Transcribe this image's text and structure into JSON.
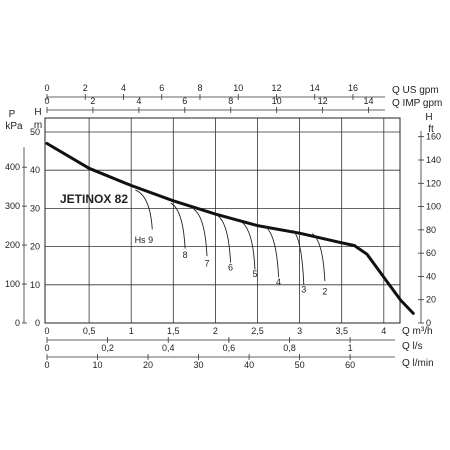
{
  "chart_data": {
    "type": "line",
    "title": "JETINOX 82",
    "x": {
      "unit": "Q m³/h",
      "range": [
        0,
        4.6
      ],
      "ticks": [
        "0",
        "0,5",
        "1",
        "1,5",
        "2",
        "2,5",
        "3",
        "3,5",
        "4"
      ],
      "tick_values": [
        0,
        0.5,
        1,
        1.5,
        2,
        2.5,
        3,
        3.5,
        4
      ]
    },
    "y": {
      "unit_top": "H",
      "unit": "m",
      "range": [
        0,
        50
      ],
      "ticks": [
        "0",
        "10",
        "20",
        "30",
        "40",
        "50"
      ],
      "tick_values": [
        0,
        10,
        20,
        30,
        40,
        50
      ],
      "grid": true
    },
    "pressure_axis": {
      "unit_top": "P",
      "unit": "kPa",
      "ticks": [
        "0",
        "100",
        "200",
        "300",
        "400"
      ],
      "tick_values": [
        0,
        100,
        200,
        300,
        400
      ]
    },
    "feet_axis": {
      "unit_top": "H",
      "unit": "ft",
      "ticks": [
        "0",
        "20",
        "40",
        "60",
        "80",
        "100",
        "120",
        "140",
        "160"
      ],
      "tick_values": [
        0,
        20,
        40,
        60,
        80,
        100,
        120,
        140,
        160
      ]
    },
    "top_axes": [
      {
        "unit": "Q US gpm",
        "ticks": [
          "0",
          "2",
          "4",
          "6",
          "8",
          "10",
          "12",
          "14",
          "16"
        ],
        "tick_values": [
          0,
          2,
          4,
          6,
          8,
          10,
          12,
          14,
          16
        ],
        "per_m3h": 4.403
      },
      {
        "unit": "Q IMP gpm",
        "ticks": [
          "0",
          "2",
          "4",
          "6",
          "8",
          "10",
          "12",
          "14"
        ],
        "tick_values": [
          0,
          2,
          4,
          6,
          8,
          10,
          12,
          14
        ],
        "per_m3h": 3.666
      }
    ],
    "bottom_axes": [
      {
        "unit": "Q l/s",
        "ticks": [
          "0",
          "0,2",
          "0,4",
          "0,6",
          "0,8",
          "1"
        ],
        "tick_values": [
          0,
          0.2,
          0.4,
          0.6,
          0.8,
          1.0
        ],
        "per_m3h": 0.2778
      },
      {
        "unit": "Q l/min",
        "ticks": [
          "0",
          "10",
          "20",
          "30",
          "40",
          "50",
          "60"
        ],
        "tick_values": [
          0,
          10,
          20,
          30,
          40,
          50,
          60
        ],
        "per_m3h": 16.667
      }
    ],
    "series": [
      {
        "values": [
          [
            0,
            47
          ],
          [
            0.5,
            40.5
          ],
          [
            1,
            36
          ],
          [
            1.5,
            32
          ],
          [
            2,
            28.5
          ],
          [
            2.5,
            25.5
          ],
          [
            3,
            23.5
          ],
          [
            3.5,
            21
          ],
          [
            3.65,
            20.3
          ],
          [
            3.8,
            18
          ],
          [
            4,
            12
          ],
          [
            4.2,
            6
          ],
          [
            4.35,
            2.5
          ]
        ]
      }
    ],
    "hs_curves": [
      {
        "label": "Hs 9",
        "start": [
          1.05,
          34.8
        ],
        "end": [
          1.25,
          24.5
        ],
        "label_at": [
          1.15,
          21
        ]
      },
      {
        "label": "8",
        "start": [
          1.47,
          31.4
        ],
        "end": [
          1.64,
          19.5
        ],
        "label_at": [
          1.64,
          17
        ]
      },
      {
        "label": "7",
        "start": [
          1.74,
          29.8
        ],
        "end": [
          1.9,
          17.5
        ],
        "label_at": [
          1.9,
          14.8
        ]
      },
      {
        "label": "6",
        "start": [
          2.02,
          28.2
        ],
        "end": [
          2.18,
          15.8
        ],
        "label_at": [
          2.18,
          13.7
        ]
      },
      {
        "label": "5",
        "start": [
          2.3,
          26.6
        ],
        "end": [
          2.47,
          14
        ],
        "label_at": [
          2.47,
          12
        ]
      },
      {
        "label": "4",
        "start": [
          2.58,
          25.5
        ],
        "end": [
          2.75,
          12
        ],
        "label_at": [
          2.75,
          10
        ]
      },
      {
        "label": "3",
        "start": [
          2.92,
          24.3
        ],
        "end": [
          3.05,
          10
        ],
        "label_at": [
          3.05,
          8
        ]
      },
      {
        "label": "2",
        "start": [
          3.15,
          23.4
        ],
        "end": [
          3.3,
          11
        ],
        "label_at": [
          3.3,
          7.5
        ]
      }
    ]
  }
}
